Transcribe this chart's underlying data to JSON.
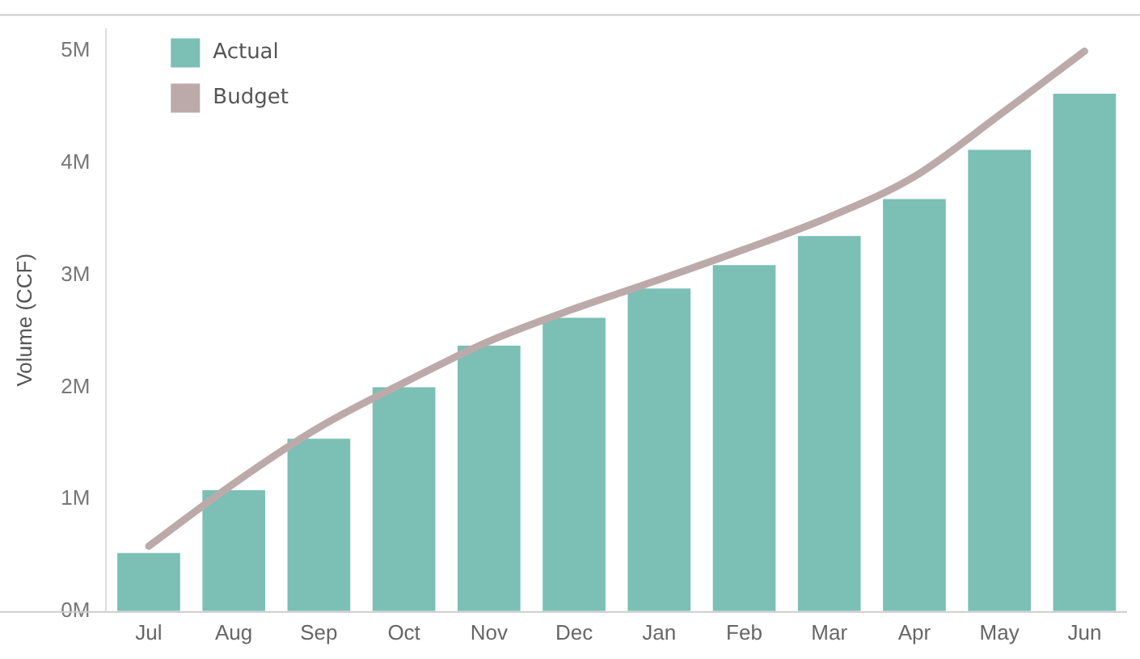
{
  "chart_data": {
    "type": "bar",
    "ylabel": "Volume (CCF)",
    "categories": [
      "Jul",
      "Aug",
      "Sep",
      "Oct",
      "Nov",
      "Dec",
      "Jan",
      "Feb",
      "Mar",
      "Apr",
      "May",
      "Jun"
    ],
    "series": [
      {
        "name": "Actual",
        "color": "#7bbfb5",
        "values": [
          520000,
          1080000,
          1540000,
          2000000,
          2370000,
          2620000,
          2880000,
          3090000,
          3350000,
          3680000,
          4120000,
          4620000
        ]
      },
      {
        "name": "Budget",
        "type": "line",
        "color": "#bcaaab",
        "values": [
          580000,
          1140000,
          1640000,
          2040000,
          2410000,
          2700000,
          2960000,
          3230000,
          3520000,
          3880000,
          4430000,
          5000000
        ]
      }
    ],
    "ylim": [
      0,
      5200000
    ],
    "yticks": [
      {
        "value": 0,
        "label": "0M"
      },
      {
        "value": 1000000,
        "label": "1M"
      },
      {
        "value": 2000000,
        "label": "2M"
      },
      {
        "value": 3000000,
        "label": "3M"
      },
      {
        "value": 4000000,
        "label": "4M"
      },
      {
        "value": 5000000,
        "label": "5M"
      }
    ],
    "grid": false,
    "legend": "top left",
    "marker": "none"
  }
}
